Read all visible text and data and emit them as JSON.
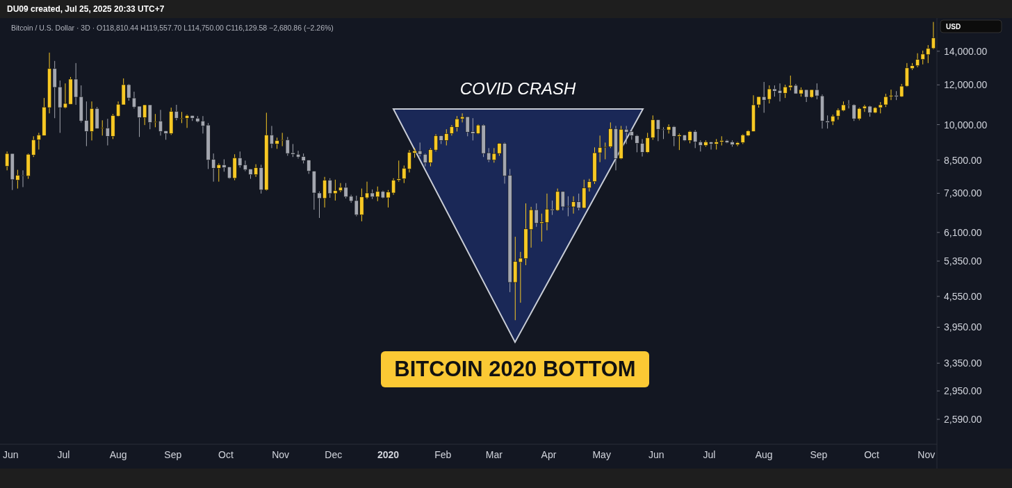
{
  "chart_data": {
    "type": "candlestick",
    "title": "Bitcoin / U.S. Dollar · 3D · O118,810.44 H119,557.70 L114,750.00 C116,129.58 −2,680.86 (−2.26%)",
    "subtitle": "DU09 created, Jul 25, 2025 20:33 UTC+7",
    "ylabel": "USD",
    "annotations": [
      "COVID CRASH",
      "BITCOIN 2020 BOTTOM"
    ],
    "colors": [
      "#f7c824",
      "#a3a6af",
      "#f7c824",
      "#a3a6af",
      "#f7c824",
      "#f7c824",
      "#f7c824",
      "#f7c824",
      "#f7c824",
      "#a3a6af",
      "#a3a6af",
      "#f7c824",
      "#f7c824",
      "#a3a6af",
      "#a3a6af",
      "#a3a6af",
      "#f7c824",
      "#a3a6af",
      "#f7c824",
      "#a3a6af",
      "#f7c824",
      "#f7c824",
      "#f7c824",
      "#a3a6af",
      "#a3a6af",
      "#a3a6af",
      "#f7c824",
      "#a3a6af",
      "#f7c824",
      "#a3a6af",
      "#a3a6af",
      "#f7c824",
      "#a3a6af",
      "#f7c824",
      "#f7c824",
      "#a3a6af",
      "#a3a6af",
      "#a3a6af",
      "#a3a6af",
      "#a3a6af",
      "#f7c824",
      "#a3a6af",
      "#a3a6af",
      "#f7c824",
      "#a3a6af",
      "#a3a6af",
      "#a3a6af",
      "#f7c824",
      "#a3a6af",
      "#f7c824",
      "#a3a6af",
      "#f7c824",
      "#f7c824",
      "#a3a6af",
      "#a3a6af",
      "#a3a6af",
      "#a3a6af",
      "#a3a6af",
      "#a3a6af",
      "#a3a6af",
      "#f7c824",
      "#a3a6af",
      "#f7c824",
      "#f7c824",
      "#a3a6af",
      "#a3a6af",
      "#a3a6af",
      "#f7c824",
      "#f7c824",
      "#a3a6af",
      "#f7c824",
      "#a3a6af",
      "#f7c824",
      "#f7c824",
      "#f7c824",
      "#f7c824",
      "#f7c824",
      "#f7c824",
      "#a3a6af",
      "#a3a6af",
      "#f7c824",
      "#f7c824",
      "#a3a6af",
      "#f7c824",
      "#f7c824",
      "#f7c824",
      "#f7c824",
      "#a3a6af",
      "#a3a6af",
      "#f7c824",
      "#a3a6af",
      "#a3a6af",
      "#f7c824",
      "#f7c824",
      "#a3a6af",
      "#a3a6af",
      "#f7c824",
      "#f7c824",
      "#f7c824",
      "#f7c824",
      "#a3a6af",
      "#f7c824",
      "#f7c824",
      "#a3a6af",
      "#f7c824",
      "#a3a6af",
      "#a3a6af",
      "#f7c824",
      "#a3a6af",
      "#f7c824",
      "#f7c824",
      "#f7c824",
      "#f7c824",
      "#f7c824",
      "#f7c824",
      "#a3a6af",
      "#f7c824",
      "#a3a6af",
      "#a3a6af",
      "#a3a6af",
      "#a3a6af",
      "#f7c824",
      "#f7c824",
      "#a3a6af",
      "#a3a6af",
      "#f7c824",
      "#a3a6af",
      "#f7c824",
      "#a3a6af",
      "#f7c824",
      "#a3a6af",
      "#a3a6af",
      "#f7c824",
      "#a3a6af",
      "#f7c824",
      "#f7c824",
      "#a3a6af",
      "#a3a6af",
      "#f7c824",
      "#f7c824",
      "#f7c824",
      "#f7c824",
      "#f7c824",
      "#a3a6af",
      "#f7c824",
      "#a3a6af",
      "#a3a6af",
      "#f7c824",
      "#f7c824",
      "#a3a6af",
      "#f7c824",
      "#a3a6af",
      "#f7c824",
      "#a3a6af",
      "#a3a6af",
      "#a3a6af",
      "#f7c824",
      "#f7c824",
      "#f7c824",
      "#a3a6af",
      "#a3a6af",
      "#f7c824",
      "#f7c824",
      "#a3a6af",
      "#f7c824",
      "#f7c824",
      "#f7c824",
      "#f7c824",
      "#a3a6af",
      "#f7c824",
      "#f7c824",
      "#f7c824",
      "#f7c824",
      "#f7c824",
      "#f7c824",
      "#f7c824"
    ],
    "log": true,
    "xlim": [
      "2019-05-26",
      "2020-11-07"
    ],
    "xticks": [
      {
        "value": "2019-06-01",
        "label": "Jun"
      },
      {
        "value": "2019-07-01",
        "label": "Jul"
      },
      {
        "value": "2019-08-01",
        "label": "Aug"
      },
      {
        "value": "2019-09-01",
        "label": "Sep"
      },
      {
        "value": "2019-10-01",
        "label": "Oct"
      },
      {
        "value": "2019-11-01",
        "label": "Nov"
      },
      {
        "value": "2019-12-01",
        "label": "Dec"
      },
      {
        "value": "2020-01-01",
        "label": "2020"
      },
      {
        "value": "2020-02-01",
        "label": "Feb"
      },
      {
        "value": "2020-03-01",
        "label": "Mar"
      },
      {
        "value": "2020-04-01",
        "label": "Apr"
      },
      {
        "value": "2020-05-01",
        "label": "May"
      },
      {
        "value": "2020-06-01",
        "label": "Jun"
      },
      {
        "value": "2020-07-01",
        "label": "Jul"
      },
      {
        "value": "2020-08-01",
        "label": "Aug"
      },
      {
        "value": "2020-09-01",
        "label": "Sep"
      },
      {
        "value": "2020-10-01",
        "label": "Oct"
      },
      {
        "value": "2020-11-01",
        "label": "Nov"
      }
    ],
    "ylim": [
      2310,
      16300
    ],
    "yticks": [
      {
        "value": 2590,
        "label": "2,590.00"
      },
      {
        "value": 2950,
        "label": "2,950.00"
      },
      {
        "value": 3350,
        "label": "3,350.00"
      },
      {
        "value": 3950,
        "label": "3,950.00"
      },
      {
        "value": 4550,
        "label": "4,550.00"
      },
      {
        "value": 5350,
        "label": "5,350.00"
      },
      {
        "value": 6100,
        "label": "6,100.00"
      },
      {
        "value": 7300,
        "label": "7,300.00"
      },
      {
        "value": 8500,
        "label": "8,500.00"
      },
      {
        "value": 10000,
        "label": "10,000.00"
      },
      {
        "value": 12000,
        "label": "12,000.00"
      },
      {
        "value": 14000,
        "label": "14,000.00"
      }
    ],
    "x": [
      "2019-05-30",
      "2019-06-02",
      "2019-06-05",
      "2019-06-08",
      "2019-06-11",
      "2019-06-14",
      "2019-06-17",
      "2019-06-20",
      "2019-06-23",
      "2019-06-26",
      "2019-06-29",
      "2019-07-02",
      "2019-07-05",
      "2019-07-08",
      "2019-07-11",
      "2019-07-14",
      "2019-07-17",
      "2019-07-20",
      "2019-07-23",
      "2019-07-26",
      "2019-07-29",
      "2019-08-01",
      "2019-08-04",
      "2019-08-07",
      "2019-08-10",
      "2019-08-13",
      "2019-08-16",
      "2019-08-19",
      "2019-08-22",
      "2019-08-25",
      "2019-08-28",
      "2019-08-31",
      "2019-09-03",
      "2019-09-06",
      "2019-09-09",
      "2019-09-12",
      "2019-09-15",
      "2019-09-18",
      "2019-09-21",
      "2019-09-24",
      "2019-09-27",
      "2019-09-30",
      "2019-10-03",
      "2019-10-06",
      "2019-10-09",
      "2019-10-12",
      "2019-10-15",
      "2019-10-18",
      "2019-10-21",
      "2019-10-24",
      "2019-10-27",
      "2019-10-30",
      "2019-11-02",
      "2019-11-05",
      "2019-11-08",
      "2019-11-11",
      "2019-11-14",
      "2019-11-17",
      "2019-11-20",
      "2019-11-23",
      "2019-11-26",
      "2019-11-29",
      "2019-12-02",
      "2019-12-05",
      "2019-12-08",
      "2019-12-11",
      "2019-12-14",
      "2019-12-17",
      "2019-12-20",
      "2019-12-23",
      "2019-12-26",
      "2019-12-29",
      "2020-01-01",
      "2020-01-04",
      "2020-01-07",
      "2020-01-10",
      "2020-01-13",
      "2020-01-16",
      "2020-01-19",
      "2020-01-22",
      "2020-01-25",
      "2020-01-28",
      "2020-01-31",
      "2020-02-03",
      "2020-02-06",
      "2020-02-09",
      "2020-02-12",
      "2020-02-15",
      "2020-02-18",
      "2020-02-21",
      "2020-02-24",
      "2020-02-27",
      "2020-03-01",
      "2020-03-04",
      "2020-03-07",
      "2020-03-10",
      "2020-03-13",
      "2020-03-16",
      "2020-03-19",
      "2020-03-22",
      "2020-03-25",
      "2020-03-28",
      "2020-03-31",
      "2020-04-03",
      "2020-04-06",
      "2020-04-09",
      "2020-04-12",
      "2020-04-15",
      "2020-04-18",
      "2020-04-21",
      "2020-04-24",
      "2020-04-27",
      "2020-04-30",
      "2020-05-03",
      "2020-05-06",
      "2020-05-09",
      "2020-05-12",
      "2020-05-15",
      "2020-05-18",
      "2020-05-21",
      "2020-05-24",
      "2020-05-27",
      "2020-05-30",
      "2020-06-02",
      "2020-06-05",
      "2020-06-08",
      "2020-06-11",
      "2020-06-14",
      "2020-06-17",
      "2020-06-20",
      "2020-06-23",
      "2020-06-26",
      "2020-06-29",
      "2020-07-02",
      "2020-07-05",
      "2020-07-08",
      "2020-07-11",
      "2020-07-14",
      "2020-07-17",
      "2020-07-20",
      "2020-07-23",
      "2020-07-26",
      "2020-07-29",
      "2020-08-01",
      "2020-08-04",
      "2020-08-07",
      "2020-08-10",
      "2020-08-13",
      "2020-08-16",
      "2020-08-19",
      "2020-08-22",
      "2020-08-25",
      "2020-08-28",
      "2020-08-31",
      "2020-09-03",
      "2020-09-06",
      "2020-09-09",
      "2020-09-12",
      "2020-09-15",
      "2020-09-18",
      "2020-09-21",
      "2020-09-24",
      "2020-09-27",
      "2020-09-30",
      "2020-10-03",
      "2020-10-06",
      "2020-10-09",
      "2020-10-12",
      "2020-10-15",
      "2020-10-18",
      "2020-10-21",
      "2020-10-24",
      "2020-10-27",
      "2020-10-30",
      "2020-11-02",
      "2020-11-05"
    ],
    "ohlc": [
      [
        8260,
        8840,
        8110,
        8760
      ],
      [
        8760,
        8760,
        7410,
        7770
      ],
      [
        7750,
        8130,
        7460,
        7930
      ],
      [
        7930,
        8110,
        7510,
        7920
      ],
      [
        7900,
        8760,
        7800,
        8730
      ],
      [
        8700,
        9480,
        8620,
        9330
      ],
      [
        9330,
        9630,
        8920,
        9540
      ],
      [
        9510,
        11300,
        9510,
        10840
      ],
      [
        10810,
        13910,
        10530,
        12930
      ],
      [
        12930,
        13390,
        10300,
        11860
      ],
      [
        11890,
        12240,
        9630,
        10810
      ],
      [
        10810,
        12080,
        10770,
        11020
      ],
      [
        10980,
        12440,
        10980,
        12320
      ],
      [
        12320,
        13260,
        10950,
        11340
      ],
      [
        11370,
        11970,
        10100,
        10170
      ],
      [
        10200,
        11120,
        9060,
        9690
      ],
      [
        9690,
        11120,
        9300,
        10770
      ],
      [
        10770,
        10840,
        9820,
        9820
      ],
      [
        9850,
        10200,
        9510,
        9860
      ],
      [
        9850,
        10270,
        9090,
        9480
      ],
      [
        9480,
        10500,
        9360,
        10430
      ],
      [
        10400,
        11120,
        10370,
        10980
      ],
      [
        10950,
        12360,
        10950,
        12010
      ],
      [
        12010,
        12050,
        11160,
        11300
      ],
      [
        11300,
        11630,
        10770,
        10840
      ],
      [
        10880,
        10880,
        9450,
        10330
      ],
      [
        10330,
        10950,
        9980,
        10950
      ],
      [
        10950,
        10950,
        9790,
        10100
      ],
      [
        10120,
        10500,
        9880,
        10140
      ],
      [
        10170,
        10700,
        9510,
        9690
      ],
      [
        9720,
        9720,
        9330,
        9600
      ],
      [
        9600,
        10810,
        9540,
        10630
      ],
      [
        10630,
        10950,
        10200,
        10300
      ],
      [
        10290,
        10600,
        10070,
        10300
      ],
      [
        10300,
        10470,
        9850,
        10430
      ],
      [
        10430,
        10430,
        10170,
        10300
      ],
      [
        10300,
        10400,
        10100,
        10140
      ],
      [
        10170,
        10400,
        9600,
        9940
      ],
      [
        9980,
        10070,
        8160,
        8500
      ],
      [
        8530,
        8760,
        7700,
        8190
      ],
      [
        8190,
        8370,
        7700,
        8320
      ],
      [
        8320,
        8530,
        8060,
        8210
      ],
      [
        8240,
        8240,
        7800,
        7820
      ],
      [
        7820,
        8730,
        7750,
        8590
      ],
      [
        8590,
        8840,
        8210,
        8290
      ],
      [
        8320,
        8480,
        8080,
        8130
      ],
      [
        8160,
        8160,
        7800,
        7950
      ],
      [
        7950,
        8340,
        7870,
        8210
      ],
      [
        8210,
        8320,
        7290,
        7410
      ],
      [
        7410,
        10560,
        7390,
        9540
      ],
      [
        9540,
        9940,
        8980,
        9150
      ],
      [
        9150,
        9420,
        8950,
        9300
      ],
      [
        9320,
        9630,
        9060,
        9330
      ],
      [
        9330,
        9450,
        8670,
        8760
      ],
      [
        8790,
        9150,
        8620,
        8730
      ],
      [
        8730,
        8870,
        8560,
        8620
      ],
      [
        8640,
        8760,
        8370,
        8480
      ],
      [
        8500,
        8500,
        7980,
        8080
      ],
      [
        8080,
        8080,
        6770,
        7310
      ],
      [
        7310,
        7360,
        6520,
        7130
      ],
      [
        7130,
        7870,
        6840,
        7750
      ],
      [
        7750,
        7820,
        7150,
        7290
      ],
      [
        7290,
        7770,
        7060,
        7390
      ],
      [
        7390,
        7650,
        7340,
        7500
      ],
      [
        7500,
        7650,
        7130,
        7180
      ],
      [
        7200,
        7250,
        6990,
        7040
      ],
      [
        7060,
        7220,
        6570,
        6610
      ],
      [
        6610,
        7460,
        6420,
        7180
      ],
      [
        7150,
        7700,
        7110,
        7310
      ],
      [
        7310,
        7430,
        7110,
        7180
      ],
      [
        7180,
        7530,
        7040,
        7360
      ],
      [
        7360,
        7390,
        7130,
        7150
      ],
      [
        7150,
        7410,
        6840,
        7340
      ],
      [
        7310,
        7820,
        7250,
        7750
      ],
      [
        7750,
        8480,
        7700,
        7800
      ],
      [
        7800,
        8290,
        7650,
        8190
      ],
      [
        8160,
        8900,
        8030,
        8810
      ],
      [
        8780,
        8980,
        8590,
        8870
      ],
      [
        8870,
        9210,
        8640,
        8730
      ],
      [
        8730,
        8760,
        8260,
        8400
      ],
      [
        8400,
        8980,
        8260,
        8920
      ],
      [
        8900,
        9570,
        8840,
        9510
      ],
      [
        9510,
        9510,
        9150,
        9300
      ],
      [
        9300,
        9790,
        9090,
        9600
      ],
      [
        9600,
        9980,
        9510,
        9910
      ],
      [
        9880,
        10400,
        9690,
        10270
      ],
      [
        10270,
        10530,
        10100,
        10370
      ],
      [
        10370,
        10370,
        9480,
        9660
      ],
      [
        9690,
        10300,
        9300,
        9600
      ],
      [
        9600,
        10010,
        9570,
        9980
      ],
      [
        9980,
        10010,
        8620,
        8760
      ],
      [
        8790,
        8980,
        8420,
        8500
      ],
      [
        8500,
        8980,
        8400,
        8760
      ],
      [
        8760,
        9180,
        8670,
        9180
      ],
      [
        9180,
        9210,
        7630,
        7900
      ],
      [
        7930,
        8160,
        4640,
        4850
      ],
      [
        4850,
        5980,
        4080,
        5340
      ],
      [
        5320,
        5580,
        4420,
        5420
      ],
      [
        5410,
        6970,
        5250,
        6200
      ],
      [
        6180,
        6860,
        5690,
        6770
      ],
      [
        6770,
        6970,
        6260,
        6360
      ],
      [
        6360,
        6650,
        5850,
        6400
      ],
      [
        6380,
        7290,
        6160,
        6790
      ],
      [
        6790,
        7060,
        6610,
        6750
      ],
      [
        6750,
        7460,
        6730,
        7360
      ],
      [
        7360,
        7360,
        6750,
        6860
      ],
      [
        6880,
        7200,
        6570,
        6860
      ],
      [
        6860,
        7200,
        6650,
        7020
      ],
      [
        7020,
        7290,
        6750,
        6820
      ],
      [
        6820,
        7770,
        6820,
        7480
      ],
      [
        7480,
        7800,
        7360,
        7700
      ],
      [
        7700,
        9010,
        7620,
        8790
      ],
      [
        8790,
        9510,
        8420,
        9010
      ],
      [
        9010,
        9210,
        8530,
        9040
      ],
      [
        9040,
        10100,
        8980,
        9820
      ],
      [
        9820,
        9940,
        8110,
        8560
      ],
      [
        8560,
        9940,
        8530,
        9790
      ],
      [
        9790,
        9940,
        9150,
        9660
      ],
      [
        9690,
        9820,
        9330,
        9510
      ],
      [
        9510,
        9540,
        8810,
        9180
      ],
      [
        9180,
        9360,
        8640,
        8810
      ],
      [
        8810,
        9630,
        8780,
        9420
      ],
      [
        9420,
        10430,
        9330,
        10230
      ],
      [
        10230,
        10230,
        9270,
        9790
      ],
      [
        9790,
        9880,
        9360,
        9760
      ],
      [
        9760,
        10010,
        9600,
        9910
      ],
      [
        9910,
        9940,
        9060,
        9480
      ],
      [
        9480,
        9600,
        8900,
        9540
      ],
      [
        9540,
        9540,
        9270,
        9300
      ],
      [
        9300,
        9720,
        9180,
        9690
      ],
      [
        9690,
        9750,
        8980,
        9240
      ],
      [
        9240,
        9300,
        8840,
        9090
      ],
      [
        9090,
        9300,
        9040,
        9240
      ],
      [
        9240,
        9240,
        8920,
        9150
      ],
      [
        9150,
        9360,
        8920,
        9240
      ],
      [
        9240,
        9480,
        9090,
        9300
      ],
      [
        9300,
        9330,
        9180,
        9210
      ],
      [
        9240,
        9300,
        9040,
        9120
      ],
      [
        9120,
        9240,
        9060,
        9210
      ],
      [
        9210,
        9570,
        9150,
        9540
      ],
      [
        9510,
        9750,
        9480,
        9720
      ],
      [
        9690,
        11440,
        9690,
        10950
      ],
      [
        10950,
        11370,
        10810,
        11370
      ],
      [
        11370,
        12160,
        10560,
        11190
      ],
      [
        11230,
        11970,
        11020,
        11780
      ],
      [
        11780,
        11970,
        11370,
        11660
      ],
      [
        11700,
        12080,
        11120,
        11550
      ],
      [
        11550,
        12010,
        11300,
        11890
      ],
      [
        11860,
        12520,
        11700,
        11970
      ],
      [
        11970,
        12050,
        11520,
        11520
      ],
      [
        11520,
        11860,
        11370,
        11740
      ],
      [
        11740,
        11740,
        11090,
        11340
      ],
      [
        11340,
        11740,
        11300,
        11740
      ],
      [
        11740,
        12080,
        11230,
        11410
      ],
      [
        11410,
        11480,
        9820,
        10170
      ],
      [
        10170,
        10430,
        9820,
        10100
      ],
      [
        10140,
        10470,
        9980,
        10400
      ],
      [
        10400,
        10770,
        10230,
        10700
      ],
      [
        10670,
        11120,
        10630,
        10950
      ],
      [
        10980,
        11190,
        10770,
        10950
      ],
      [
        10950,
        10980,
        10170,
        10270
      ],
      [
        10270,
        10810,
        10200,
        10770
      ],
      [
        10770,
        10950,
        10600,
        10880
      ],
      [
        10880,
        10910,
        10370,
        10560
      ],
      [
        10560,
        10840,
        10530,
        10810
      ],
      [
        10810,
        11090,
        10530,
        10950
      ],
      [
        10950,
        11520,
        10840,
        11370
      ],
      [
        11370,
        11740,
        11190,
        11440
      ],
      [
        11440,
        11660,
        11190,
        11370
      ],
      [
        11370,
        12050,
        11340,
        11930
      ],
      [
        11930,
        13260,
        11890,
        12970
      ],
      [
        12930,
        13260,
        12850,
        13100
      ],
      [
        13100,
        13870,
        13010,
        13480
      ],
      [
        13480,
        14040,
        13180,
        13820
      ],
      [
        13780,
        14400,
        13260,
        14180
      ],
      [
        14180,
        16010,
        14130,
        14880
      ]
    ]
  }
}
